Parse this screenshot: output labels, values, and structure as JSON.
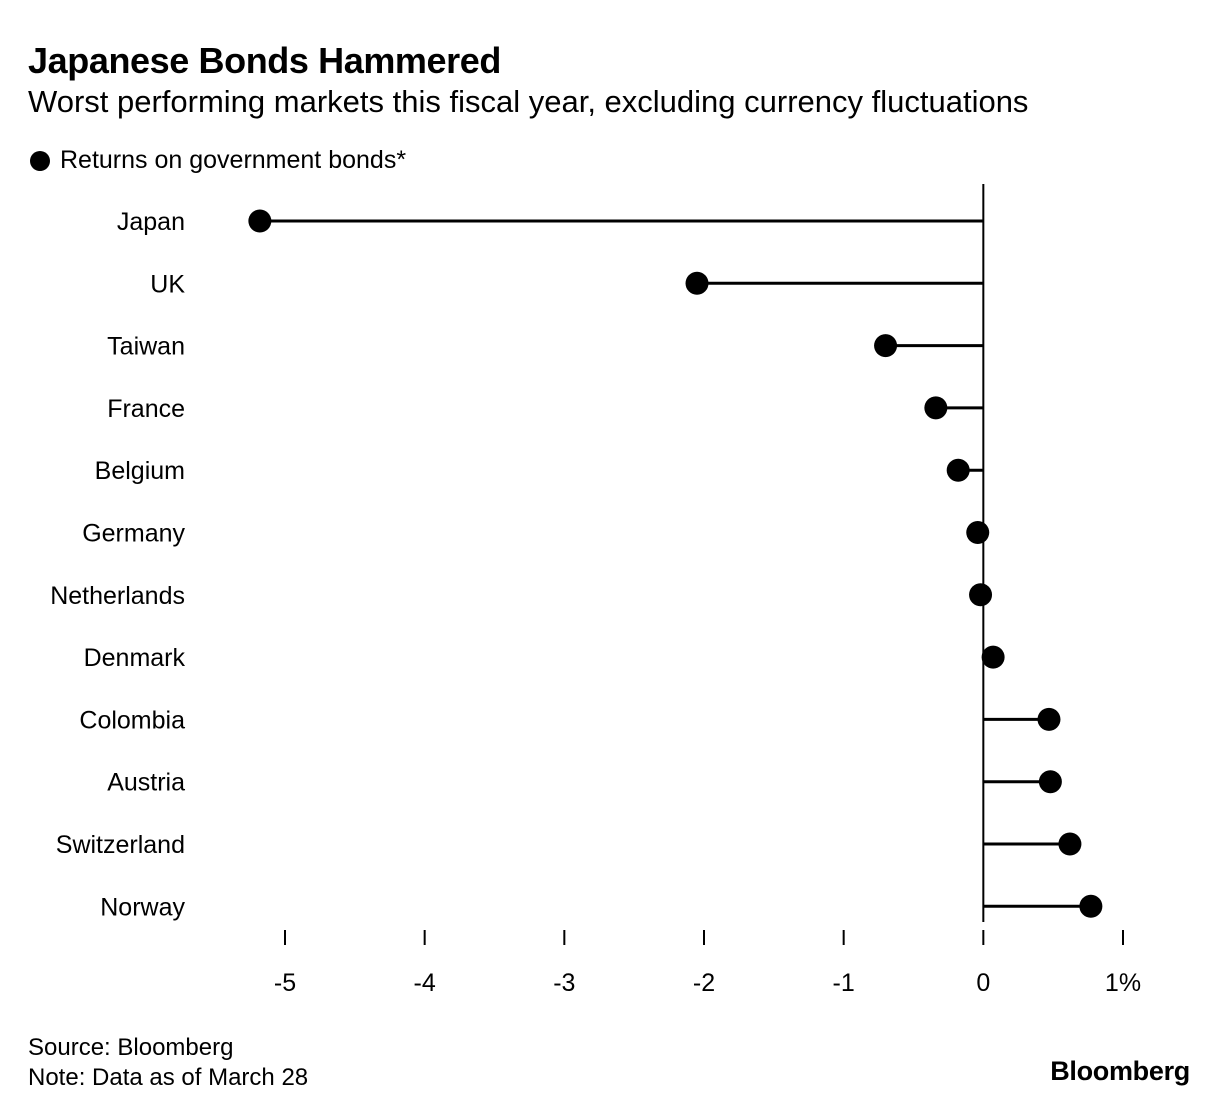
{
  "title": "Japanese Bonds Hammered",
  "subtitle": "Worst performing markets this fiscal year, excluding currency fluctuations",
  "legend": {
    "label": "Returns on government bonds*"
  },
  "footer": {
    "source": "Source: Bloomberg",
    "note": "Note: Data as of March 28"
  },
  "brand": "Bloomberg",
  "colors": {
    "marker": "#000000",
    "background": "#ffffff"
  },
  "chart_data": {
    "type": "lollipop",
    "orientation": "horizontal",
    "categories": [
      "Japan",
      "UK",
      "Taiwan",
      "France",
      "Belgium",
      "Germany",
      "Netherlands",
      "Denmark",
      "Colombia",
      "Austria",
      "Switzerland",
      "Norway"
    ],
    "series": [
      {
        "name": "Returns on government bonds*",
        "values": [
          -5.18,
          -2.05,
          -0.7,
          -0.34,
          -0.18,
          -0.04,
          -0.02,
          0.07,
          0.47,
          0.48,
          0.62,
          0.77
        ]
      }
    ],
    "xlim": [
      -5,
      1
    ],
    "xticks": [
      -5,
      -4,
      -3,
      -2,
      -1,
      0,
      1
    ],
    "xtick_labels": [
      "-5",
      "-4",
      "-3",
      "-2",
      "-1",
      "0",
      "1%"
    ],
    "baseline": 0,
    "grid": false,
    "legend_position": "top-left"
  }
}
